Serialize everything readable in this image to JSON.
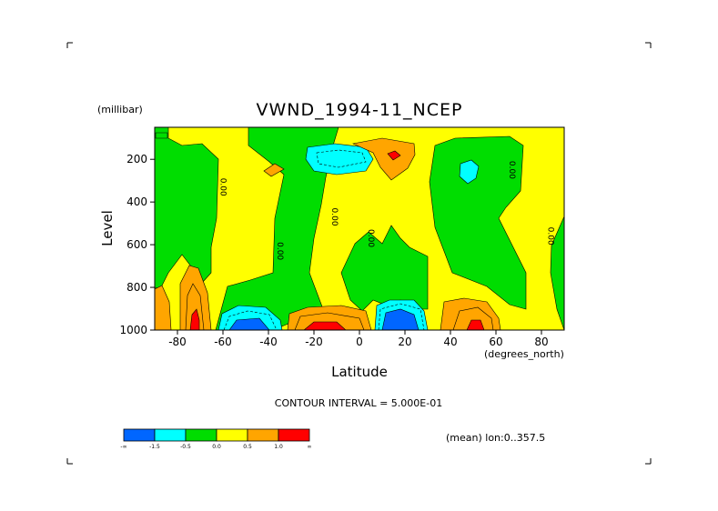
{
  "chart_data": {
    "type": "contour",
    "title": "VWND_1994-11_NCEP",
    "xlabel": "Latitude",
    "ylabel": "Level",
    "x_units": "(degrees_north)",
    "y_units": "(millibar)",
    "xlim": [
      -90,
      90
    ],
    "ylim": [
      1000,
      50
    ],
    "xticks": [
      -80,
      -60,
      -40,
      -20,
      0,
      20,
      40,
      60,
      80
    ],
    "yticks": [
      200,
      400,
      600,
      800,
      1000
    ],
    "contour_interval_text": "CONTOUR INTERVAL = 5.000E-01",
    "subtitle": "(mean) lon:0..357.5",
    "colorbar": {
      "colors": [
        "#0066ff",
        "#00ffff",
        "#00dd00",
        "#ffff00",
        "#ffa500",
        "#ff0000"
      ],
      "tick_labels": [
        "-∞",
        "-1.5",
        "-0.5",
        "0.0",
        "0.5",
        "1.0",
        "∞"
      ]
    },
    "contour_labels": [
      {
        "text": "0.00",
        "lat": -61,
        "lev": 330
      },
      {
        "text": "0.00",
        "lat": -36,
        "lev": 630
      },
      {
        "text": "0.00",
        "lat": -12,
        "lev": 470
      },
      {
        "text": "0.00",
        "lat": 4,
        "lev": 570
      },
      {
        "text": "0.00",
        "lat": 66,
        "lev": 250
      },
      {
        "text": "0.00",
        "lat": 83,
        "lev": 560
      }
    ],
    "regions": [
      {
        "level": "green",
        "desc": "negative band over Antarctic latitudes",
        "lat": -72,
        "lev": 420
      },
      {
        "level": "green",
        "desc": "negative band tilting from surface to upper troposphere",
        "lat": -20,
        "lev": 450
      },
      {
        "level": "cyan",
        "desc": "upper-level minimum",
        "lat": -8,
        "lev": 220
      },
      {
        "level": "cyan",
        "desc": "upper-level minimum",
        "lat": 50,
        "lev": 260
      },
      {
        "level": "red",
        "desc": "upper-level maximum",
        "lat": 17,
        "lev": 150
      },
      {
        "level": "blue",
        "desc": "near-surface minimum",
        "lat": -50,
        "lev": 990
      },
      {
        "level": "blue",
        "desc": "near-surface minimum",
        "lat": 17,
        "lev": 975
      },
      {
        "level": "red",
        "desc": "near-surface maximum",
        "lat": -75,
        "lev": 970
      },
      {
        "level": "red",
        "desc": "near-surface maximum",
        "lat": -20,
        "lev": 990
      },
      {
        "level": "red",
        "desc": "near-surface maximum",
        "lat": 52,
        "lev": 985
      }
    ]
  }
}
